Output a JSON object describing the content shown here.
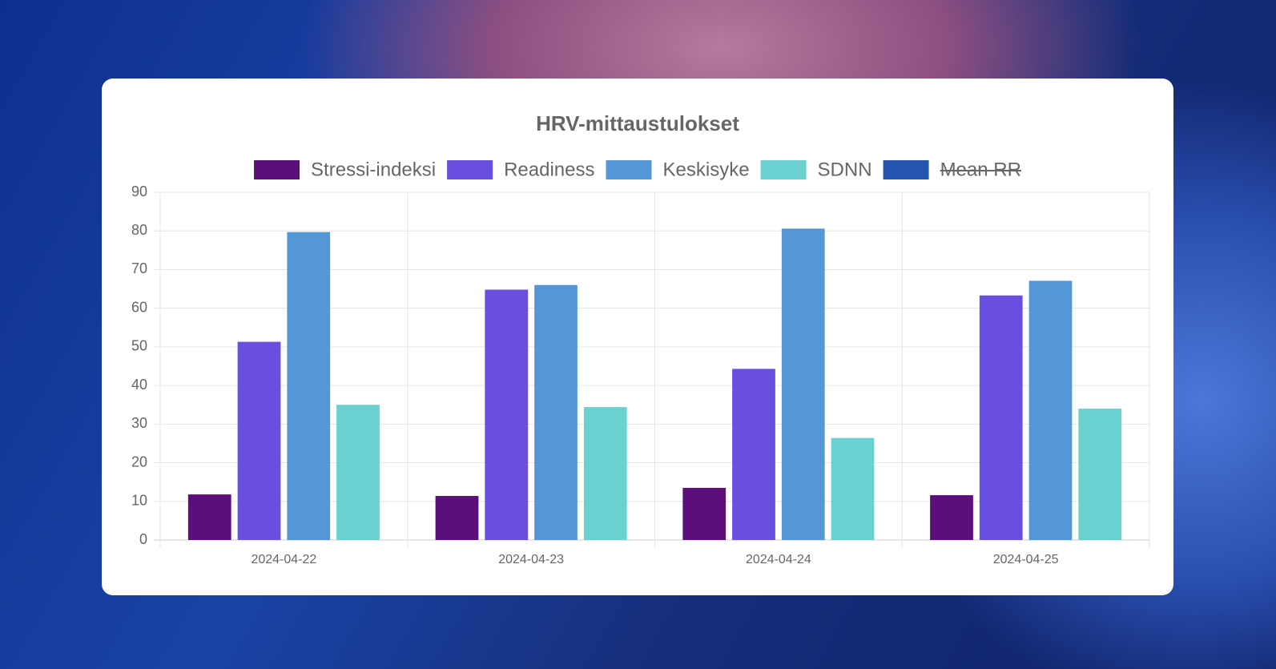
{
  "chart_data": {
    "type": "bar",
    "title": "HRV-mittaustulokset",
    "categories": [
      "2024-04-22",
      "2024-04-23",
      "2024-04-24",
      "2024-04-25"
    ],
    "series": [
      {
        "name": "Stressi-indeksi",
        "color": "#5c0f7a",
        "values": [
          11.8,
          11.4,
          13.5,
          11.6
        ]
      },
      {
        "name": "Readiness",
        "color": "#6a4ee0",
        "values": [
          51.3,
          64.8,
          44.3,
          63.3
        ]
      },
      {
        "name": "Keskisyke",
        "color": "#5497d6",
        "values": [
          79.7,
          66.0,
          80.6,
          67.1
        ]
      },
      {
        "name": "SDNN",
        "color": "#6ad1d0",
        "values": [
          35.0,
          34.4,
          26.4,
          34.0
        ]
      },
      {
        "name": "Mean RR",
        "color": "#2456b0",
        "hidden": true,
        "values": [
          null,
          null,
          null,
          null
        ]
      }
    ],
    "ylim": [
      0,
      90
    ],
    "yticks": [
      0,
      10,
      20,
      30,
      40,
      50,
      60,
      70,
      80,
      90
    ],
    "grid": true
  }
}
